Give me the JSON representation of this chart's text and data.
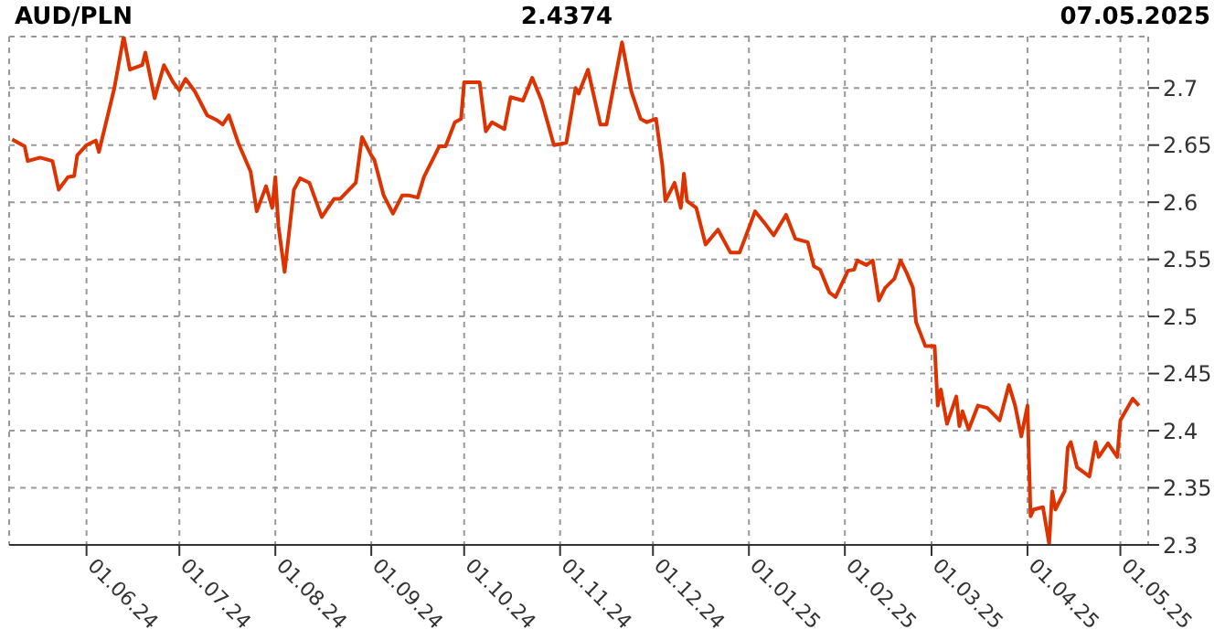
{
  "chart_data": {
    "type": "line",
    "title": "AUD/PLN",
    "subtitle": "2.4374",
    "annotations": [
      "07.05.2025"
    ],
    "x": [
      "2024-05-08",
      "2024-05-12",
      "2024-05-13",
      "2024-05-17",
      "2024-05-21",
      "2024-05-23",
      "2024-05-26",
      "2024-05-28",
      "2024-05-29",
      "2024-06-01",
      "2024-06-04",
      "2024-06-05",
      "2024-06-10",
      "2024-06-13",
      "2024-06-15",
      "2024-06-19",
      "2024-06-20",
      "2024-06-23",
      "2024-06-26",
      "2024-06-29",
      "2024-07-01",
      "2024-07-03",
      "2024-07-06",
      "2024-07-10",
      "2024-07-13",
      "2024-07-15",
      "2024-07-17",
      "2024-07-20",
      "2024-07-24",
      "2024-07-26",
      "2024-07-29",
      "2024-07-31",
      "2024-08-01",
      "2024-08-02",
      "2024-08-04",
      "2024-08-07",
      "2024-08-09",
      "2024-08-12",
      "2024-08-16",
      "2024-08-20",
      "2024-08-22",
      "2024-08-27",
      "2024-08-29",
      "2024-09-01",
      "2024-09-02",
      "2024-09-05",
      "2024-09-08",
      "2024-09-11",
      "2024-09-13",
      "2024-09-16",
      "2024-09-18",
      "2024-09-23",
      "2024-09-25",
      "2024-09-28",
      "2024-09-30",
      "2024-10-01",
      "2024-10-03",
      "2024-10-06",
      "2024-10-08",
      "2024-10-10",
      "2024-10-14",
      "2024-10-16",
      "2024-10-20",
      "2024-10-23",
      "2024-10-26",
      "2024-10-30",
      "2024-11-03",
      "2024-11-06",
      "2024-11-07",
      "2024-11-10",
      "2024-11-14",
      "2024-11-16",
      "2024-11-18",
      "2024-11-21",
      "2024-11-24",
      "2024-11-27",
      "2024-11-29",
      "2024-12-02",
      "2024-12-04",
      "2024-12-05",
      "2024-12-08",
      "2024-12-10",
      "2024-12-11",
      "2024-12-12",
      "2024-12-15",
      "2024-12-18",
      "2024-12-22",
      "2024-12-26",
      "2024-12-29",
      "2025-01-03",
      "2025-01-06",
      "2025-01-09",
      "2025-01-13",
      "2025-01-16",
      "2025-01-20",
      "2025-01-22",
      "2025-01-24",
      "2025-01-27",
      "2025-01-29",
      "2025-02-02",
      "2025-02-04",
      "2025-02-05",
      "2025-02-08",
      "2025-02-10",
      "2025-02-12",
      "2025-02-14",
      "2025-02-17",
      "2025-02-19",
      "2025-02-21",
      "2025-02-23",
      "2025-02-24",
      "2025-02-27",
      "2025-03-02",
      "2025-03-03",
      "2025-03-04",
      "2025-03-06",
      "2025-03-09",
      "2025-03-10",
      "2025-03-11",
      "2025-03-13",
      "2025-03-16",
      "2025-03-19",
      "2025-03-23",
      "2025-03-26",
      "2025-03-28",
      "2025-03-30",
      "2025-04-01",
      "2025-04-02",
      "2025-04-03",
      "2025-04-06",
      "2025-04-08",
      "2025-04-09",
      "2025-04-10",
      "2025-04-13",
      "2025-04-14",
      "2025-04-15",
      "2025-04-17",
      "2025-04-21",
      "2025-04-23",
      "2025-04-24",
      "2025-04-27",
      "2025-04-30",
      "2025-05-01",
      "2025-05-05",
      "2025-05-07"
    ],
    "series": [
      {
        "color": "#dd3300",
        "values": [
          2.655,
          2.649,
          2.636,
          2.639,
          2.636,
          2.611,
          2.622,
          2.623,
          2.641,
          2.65,
          2.654,
          2.644,
          2.7,
          2.745,
          2.716,
          2.72,
          2.731,
          2.691,
          2.72,
          2.705,
          2.698,
          2.708,
          2.697,
          2.676,
          2.672,
          2.668,
          2.676,
          2.652,
          2.627,
          2.592,
          2.614,
          2.595,
          2.622,
          2.579,
          2.539,
          2.611,
          2.621,
          2.617,
          2.587,
          2.603,
          2.603,
          2.617,
          2.657,
          2.641,
          2.637,
          2.606,
          2.59,
          2.606,
          2.606,
          2.604,
          2.622,
          2.649,
          2.649,
          2.67,
          2.673,
          2.705,
          2.705,
          2.705,
          2.662,
          2.67,
          2.664,
          2.692,
          2.689,
          2.709,
          2.689,
          2.65,
          2.652,
          2.7,
          2.695,
          2.716,
          2.668,
          2.668,
          2.697,
          2.74,
          2.697,
          2.673,
          2.67,
          2.673,
          2.633,
          2.601,
          2.617,
          2.595,
          2.625,
          2.601,
          2.595,
          2.563,
          2.576,
          2.556,
          2.556,
          2.592,
          2.582,
          2.571,
          2.589,
          2.568,
          2.565,
          2.544,
          2.541,
          2.521,
          2.517,
          2.54,
          2.541,
          2.549,
          2.545,
          2.549,
          2.514,
          2.525,
          2.533,
          2.549,
          2.538,
          2.525,
          2.495,
          2.474,
          2.474,
          2.422,
          2.436,
          2.406,
          2.43,
          2.404,
          2.417,
          2.401,
          2.422,
          2.42,
          2.409,
          2.44,
          2.422,
          2.395,
          2.422,
          2.325,
          2.331,
          2.333,
          2.301,
          2.347,
          2.331,
          2.347,
          2.385,
          2.39,
          2.368,
          2.36,
          2.39,
          2.377,
          2.389,
          2.377,
          2.409,
          2.428,
          2.422
        ]
      }
    ],
    "xlim": [
      "2024-05-07",
      "2025-05-10"
    ],
    "xticks": [
      {
        "value": "2024-06-01",
        "label": "01.06.24"
      },
      {
        "value": "2024-07-01",
        "label": "01.07.24"
      },
      {
        "value": "2024-08-01",
        "label": "01.08.24"
      },
      {
        "value": "2024-09-01",
        "label": "01.09.24"
      },
      {
        "value": "2024-10-01",
        "label": "01.10.24"
      },
      {
        "value": "2024-11-01",
        "label": "01.11.24"
      },
      {
        "value": "2024-12-01",
        "label": "01.12.24"
      },
      {
        "value": "2025-01-01",
        "label": "01.01.25"
      },
      {
        "value": "2025-02-01",
        "label": "01.02.25"
      },
      {
        "value": "2025-03-01",
        "label": "01.03.25"
      },
      {
        "value": "2025-04-01",
        "label": "01.04.25"
      },
      {
        "value": "2025-05-01",
        "label": "01.05.25"
      }
    ],
    "ylim": [
      2.3,
      2.745
    ],
    "yticks": [
      2.3,
      2.35,
      2.4,
      2.45,
      2.5,
      2.55,
      2.6,
      2.65,
      2.7
    ],
    "grid": true,
    "legend": false,
    "marker": "none",
    "line_style": "solid"
  }
}
